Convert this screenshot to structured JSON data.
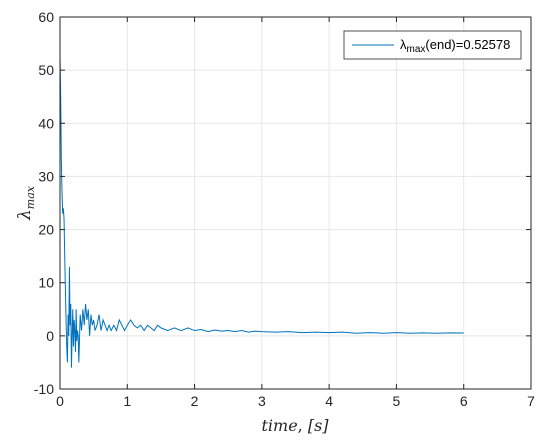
{
  "chart_data": {
    "type": "line",
    "xlabel_var": "time",
    "xlabel_unit": "[s]",
    "ylabel_base": "λ",
    "ylabel_sub": "max",
    "xlim": [
      0,
      7
    ],
    "ylim": [
      -10,
      60
    ],
    "xticks": [
      "0",
      "1",
      "2",
      "3",
      "4",
      "5",
      "6",
      "7"
    ],
    "yticks": [
      "-10",
      "0",
      "10",
      "20",
      "30",
      "40",
      "50",
      "60"
    ],
    "grid": true,
    "legend_placement": "top-right",
    "colors": {
      "series": "#0072BD",
      "grid": "#e6e6e6",
      "axis": "#262626"
    },
    "series": [
      {
        "name_base": "λ",
        "name_sub": "max",
        "name_rest": "(end)=0.52578",
        "x": [
          0,
          0.01,
          0.02,
          0.03,
          0.04,
          0.05,
          0.06,
          0.07,
          0.08,
          0.09,
          0.1,
          0.11,
          0.12,
          0.13,
          0.14,
          0.15,
          0.16,
          0.17,
          0.18,
          0.19,
          0.2,
          0.21,
          0.22,
          0.23,
          0.24,
          0.25,
          0.26,
          0.27,
          0.28,
          0.3,
          0.32,
          0.34,
          0.36,
          0.38,
          0.4,
          0.42,
          0.44,
          0.46,
          0.48,
          0.5,
          0.52,
          0.55,
          0.58,
          0.61,
          0.64,
          0.67,
          0.7,
          0.73,
          0.76,
          0.8,
          0.84,
          0.88,
          0.92,
          0.96,
          1.0,
          1.05,
          1.1,
          1.15,
          1.2,
          1.25,
          1.3,
          1.35,
          1.4,
          1.45,
          1.5,
          1.6,
          1.7,
          1.8,
          1.9,
          2.0,
          2.1,
          2.2,
          2.3,
          2.4,
          2.5,
          2.6,
          2.7,
          2.8,
          2.9,
          3.0,
          3.2,
          3.4,
          3.6,
          3.8,
          4.0,
          4.2,
          4.4,
          4.6,
          4.8,
          5.0,
          5.2,
          5.4,
          5.6,
          5.8,
          6.0
        ],
        "y": [
          53,
          45,
          33,
          27,
          23,
          24,
          22,
          15,
          9,
          3,
          -2,
          -5,
          4,
          0,
          13,
          2,
          6,
          -6,
          0,
          5,
          -2,
          3,
          1,
          -3,
          5,
          -1,
          1,
          0,
          -5,
          4,
          1,
          5,
          2,
          6,
          3,
          5,
          0,
          4,
          2,
          3,
          1,
          2,
          4,
          1,
          3,
          2,
          1,
          2,
          1,
          2,
          1,
          3,
          2,
          1,
          2,
          3,
          2,
          1.5,
          2,
          1,
          2,
          1.5,
          1,
          2,
          1.5,
          1,
          1.5,
          1,
          1.5,
          1,
          1.2,
          0.8,
          1.1,
          0.9,
          1,
          0.8,
          1,
          0.7,
          0.9,
          0.8,
          0.7,
          0.8,
          0.6,
          0.7,
          0.6,
          0.7,
          0.5,
          0.6,
          0.5,
          0.6,
          0.5,
          0.55,
          0.5,
          0.55,
          0.52578
        ]
      }
    ]
  }
}
